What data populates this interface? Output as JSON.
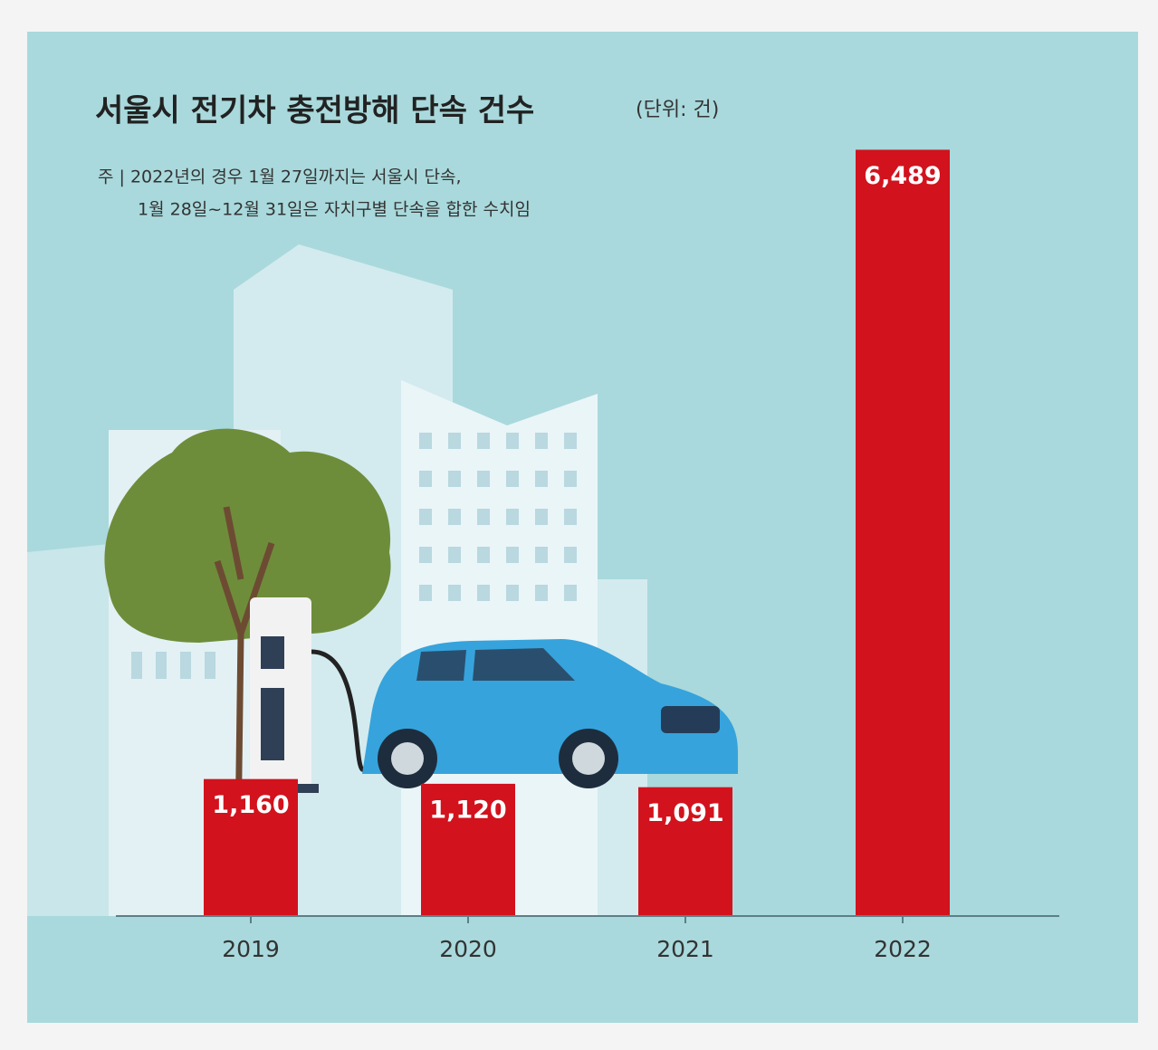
{
  "chart_data": {
    "type": "bar",
    "title": "서울시 전기차 충전방해 단속 건수",
    "unit": "(단위: 건)",
    "notes": [
      "주 | 2022년의 경우 1월 27일까지는 서울시 단속,",
      "1월 28일~12월 31일은 자치구별 단속을 합한 수치임"
    ],
    "categories": [
      "2019",
      "2020",
      "2021",
      "2022"
    ],
    "values": [
      1160,
      1120,
      1091,
      6489
    ],
    "value_labels": [
      "1,160",
      "1,120",
      "1,091",
      "6,489"
    ],
    "color": "#d2121d",
    "ylim": [
      0,
      6500
    ]
  }
}
